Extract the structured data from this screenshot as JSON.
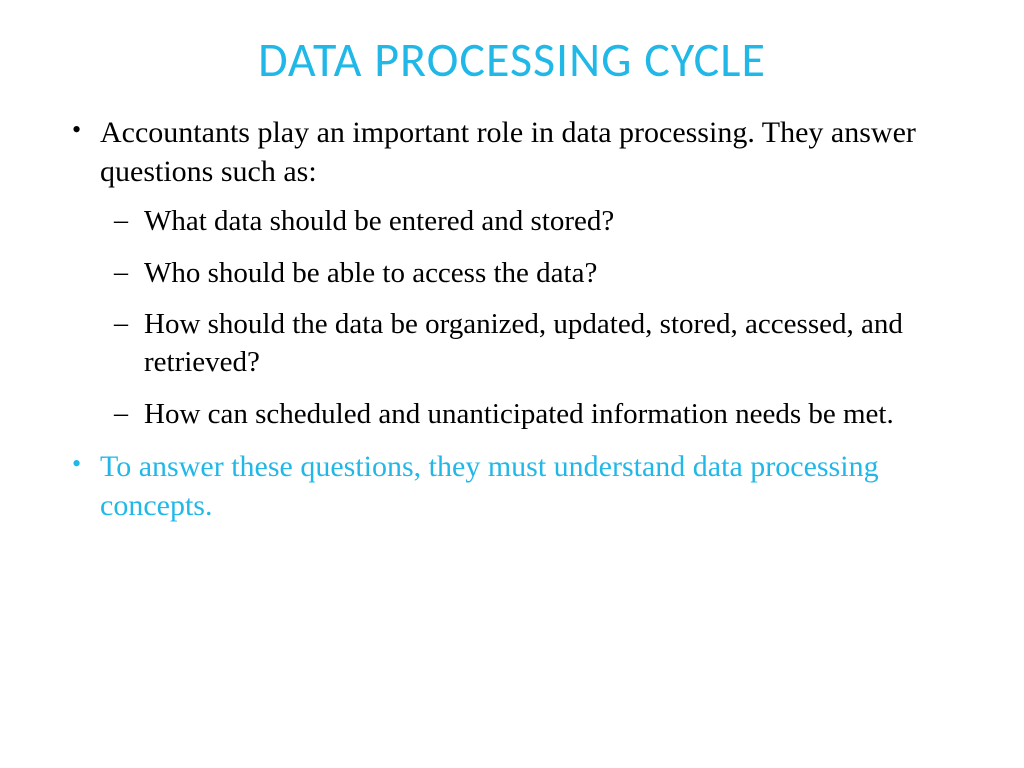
{
  "colors": {
    "accent": "#21b8e8",
    "text": "#000000",
    "background": "#ffffff"
  },
  "typography": {
    "title_font": "Calibri",
    "body_font": "Times New Roman",
    "title_fontsize": 48,
    "body_fontsize": 30,
    "sub_fontsize": 29
  },
  "slide": {
    "title": "DATA PROCESSING CYCLE",
    "bullets": [
      {
        "text": "Accountants play an important role in data processing.  They answer questions such as:",
        "color": "#000000",
        "bullet_color": "#000000",
        "sub": [
          {
            "text": "What data should be entered and stored?"
          },
          {
            "text": "Who should be able to access the data?"
          },
          {
            "text": "How should the data be organized, updated, stored, accessed, and retrieved?"
          },
          {
            "text": "How can scheduled and unanticipated information needs be met."
          }
        ]
      },
      {
        "text": "To answer these questions, they must understand data processing concepts.",
        "color": "#21b8e8",
        "bullet_color": "#21b8e8",
        "sub": []
      }
    ]
  }
}
